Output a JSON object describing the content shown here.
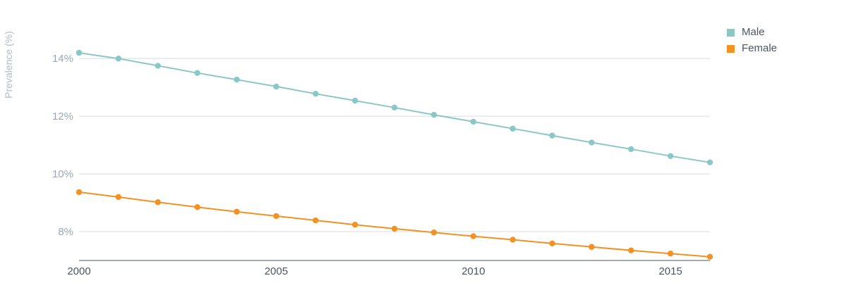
{
  "chart_data": {
    "type": "line",
    "title": "",
    "xlabel": "",
    "ylabel": "Prevalence (%)",
    "x": [
      2000,
      2001,
      2002,
      2003,
      2004,
      2005,
      2006,
      2007,
      2008,
      2009,
      2010,
      2011,
      2012,
      2013,
      2014,
      2015,
      2016
    ],
    "x_ticks": [
      "2000",
      "2005",
      "2010",
      "2015"
    ],
    "y_ticks": [
      "14%",
      "12%",
      "10%",
      "8%"
    ],
    "y_tick_values": [
      14,
      12,
      10,
      8
    ],
    "xlim": [
      2000,
      2016
    ],
    "ylim": [
      7,
      15.2
    ],
    "grid": "horizontal",
    "legend_position": "top-right",
    "series": [
      {
        "name": "Male",
        "color": "#8ac8c8",
        "values": [
          14.2,
          14.0,
          13.75,
          13.5,
          13.27,
          13.03,
          12.78,
          12.54,
          12.3,
          12.05,
          11.81,
          11.57,
          11.33,
          11.09,
          10.86,
          10.62,
          10.4
        ]
      },
      {
        "name": "Female",
        "color": "#f39123",
        "values": [
          9.37,
          9.2,
          9.02,
          8.85,
          8.69,
          8.54,
          8.39,
          8.24,
          8.1,
          7.97,
          7.84,
          7.72,
          7.59,
          7.47,
          7.35,
          7.24,
          7.13
        ]
      }
    ]
  }
}
